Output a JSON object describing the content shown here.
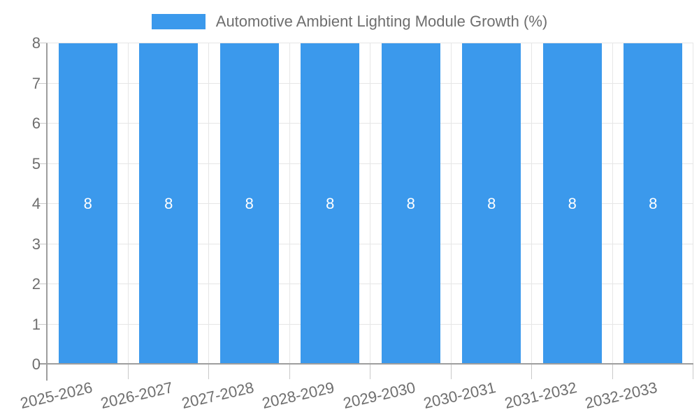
{
  "chart_data": {
    "type": "bar",
    "title": "Automotive Ambient Lighting Module Growth (%)",
    "categories": [
      "2025-2026",
      "2026-2027",
      "2027-2028",
      "2028-2029",
      "2029-2030",
      "2030-2031",
      "2031-2032",
      "2032-2033"
    ],
    "series": [
      {
        "name": "Automotive Ambient Lighting Module Growth (%)",
        "values": [
          8,
          8,
          8,
          8,
          8,
          8,
          8,
          8
        ]
      }
    ],
    "bar_value_labels": [
      "8",
      "8",
      "8",
      "8",
      "8",
      "8",
      "8",
      "8"
    ],
    "xlabel": "",
    "ylabel": "",
    "ylim": [
      0,
      8
    ],
    "ytick_labels": [
      "0",
      "1",
      "2",
      "3",
      "4",
      "5",
      "6",
      "7",
      "8"
    ],
    "grid": true,
    "legend_position": "top",
    "x_label_rotation_deg": -13,
    "colors": {
      "bar": "#3B99EC",
      "bar_label": "#FFFFFF",
      "gridline": "#E6E6E6",
      "axis_line": "#9E9E9E",
      "tick": "#C9C9C9",
      "axis_text": "#6E6E6E",
      "legend_text": "#6E6E6E",
      "background": "#FFFFFF"
    }
  },
  "legend": {
    "label": "Automotive Ambient Lighting Module Growth (%)"
  }
}
